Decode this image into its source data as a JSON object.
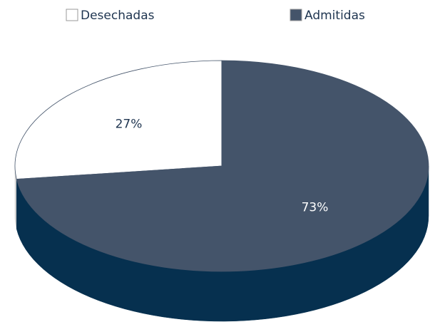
{
  "chart_data": {
    "type": "pie",
    "categories": [
      "Desechadas",
      "Admitidas"
    ],
    "values": [
      27,
      73
    ],
    "value_labels": [
      "27%",
      "73%"
    ],
    "colors": [
      "#ffffff",
      "#44546a"
    ],
    "side_colors": [
      "#d0d0d0",
      "#06304f"
    ],
    "label_colors": [
      "#1f3550",
      "#ffffff"
    ]
  }
}
